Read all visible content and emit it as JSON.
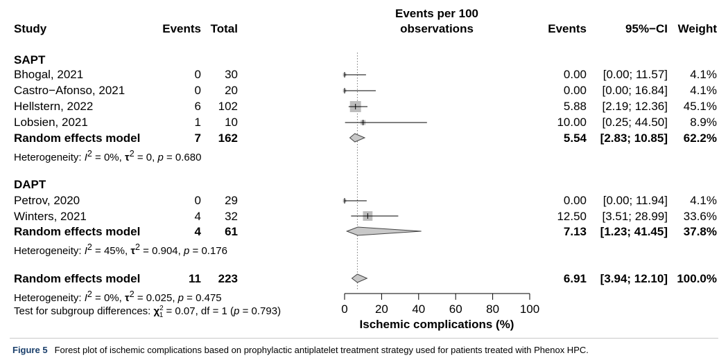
{
  "headers": {
    "study": "Study",
    "events": "Events",
    "total": "Total",
    "plot_line1": "Events per 100",
    "plot_line2": "observations",
    "events_right": "Events",
    "ci": "95%−CI",
    "weight": "Weight"
  },
  "groups": [
    {
      "name": "SAPT",
      "studies": [
        {
          "study": "Bhogal, 2021",
          "events": "0",
          "total": "30",
          "est": "0.00",
          "ci": "[0.00; 11.57]",
          "weight": "4.1%"
        },
        {
          "study": "Castro−Afonso, 2021",
          "events": "0",
          "total": "20",
          "est": "0.00",
          "ci": "[0.00; 16.84]",
          "weight": "4.1%"
        },
        {
          "study": "Hellstern, 2022",
          "events": "6",
          "total": "102",
          "est": "5.88",
          "ci": "[2.19; 12.36]",
          "weight": "45.1%"
        },
        {
          "study": "Lobsien, 2021",
          "events": "1",
          "total": "10",
          "est": "10.00",
          "ci": "[0.25; 44.50]",
          "weight": "8.9%"
        }
      ],
      "pooled": {
        "label": "Random effects model",
        "events": "7",
        "total": "162",
        "est": "5.54",
        "ci": "[2.83; 10.85]",
        "weight": "62.2%"
      },
      "het": {
        "prefix": "Heterogeneity: ",
        "i2": "0%",
        "tau2": "0",
        "p": "0.680"
      }
    },
    {
      "name": "DAPT",
      "studies": [
        {
          "study": "Petrov, 2020",
          "events": "0",
          "total": "29",
          "est": "0.00",
          "ci": "[0.00; 11.94]",
          "weight": "4.1%"
        },
        {
          "study": "Winters, 2021",
          "events": "4",
          "total": "32",
          "est": "12.50",
          "ci": "[3.51; 28.99]",
          "weight": "33.6%"
        }
      ],
      "pooled": {
        "label": "Random effects model",
        "events": "4",
        "total": "61",
        "est": "7.13",
        "ci": "[1.23; 41.45]",
        "weight": "37.8%"
      },
      "het": {
        "prefix": "Heterogeneity: ",
        "i2": "45%",
        "tau2": "0.904",
        "p": "0.176"
      }
    }
  ],
  "overall": {
    "label": "Random effects model",
    "events": "11",
    "total": "223",
    "est": "6.91",
    "ci": "[3.94; 12.10]",
    "weight": "100.0%",
    "het": {
      "prefix": "Heterogeneity: ",
      "i2": "0%",
      "tau2": "0.025",
      "p": "0.475"
    },
    "subgroup": {
      "prefix": "Test for subgroup differences: ",
      "chi": "0.07",
      "df": "1",
      "p": "0.793"
    }
  },
  "caption": {
    "label": "Figure 5",
    "text": "Forest plot of ischemic complications based on prophylactic antiplatelet treatment strategy used for patients treated with Phenox HPC."
  },
  "chart_data": {
    "type": "forest",
    "xlabel": "Ischemic complications (%)",
    "xlim": [
      0,
      100
    ],
    "xticks": [
      0,
      20,
      40,
      60,
      80,
      100
    ],
    "reference_line": 6.91,
    "colors": {
      "box": "#bdbdbd",
      "diamond": "#c8c8c8",
      "line": "#000000",
      "ref": "#777777"
    },
    "rows": [
      {
        "kind": "study",
        "est": 0.0,
        "lo": 0.0,
        "hi": 11.57,
        "weight": 4.1
      },
      {
        "kind": "study",
        "est": 0.0,
        "lo": 0.0,
        "hi": 16.84,
        "weight": 4.1
      },
      {
        "kind": "study",
        "est": 5.88,
        "lo": 2.19,
        "hi": 12.36,
        "weight": 45.1
      },
      {
        "kind": "study",
        "est": 10.0,
        "lo": 0.25,
        "hi": 44.5,
        "weight": 8.9
      },
      {
        "kind": "pooled",
        "est": 5.54,
        "lo": 2.83,
        "hi": 10.85
      },
      {
        "kind": "study",
        "est": 0.0,
        "lo": 0.0,
        "hi": 11.94,
        "weight": 4.1
      },
      {
        "kind": "study",
        "est": 12.5,
        "lo": 3.51,
        "hi": 28.99,
        "weight": 33.6
      },
      {
        "kind": "pooled",
        "est": 7.13,
        "lo": 1.23,
        "hi": 41.45
      },
      {
        "kind": "pooled",
        "est": 6.91,
        "lo": 3.94,
        "hi": 12.1
      }
    ]
  }
}
